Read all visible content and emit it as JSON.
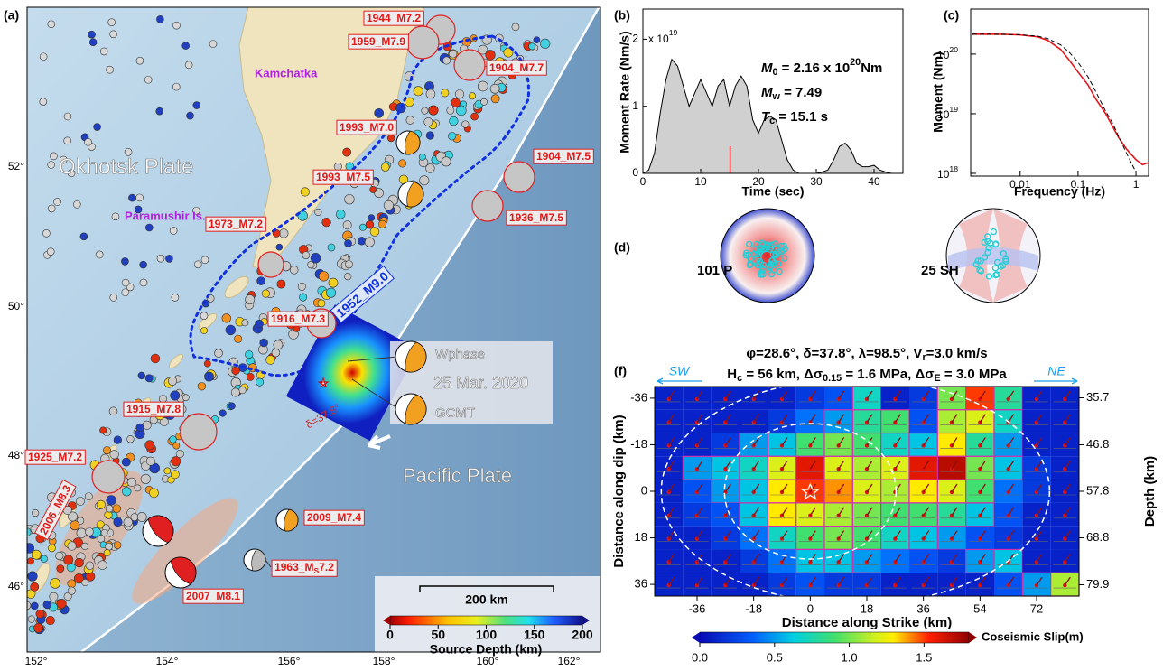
{
  "map": {
    "lon_ticks": [
      "152°",
      "154°",
      "156°",
      "158°",
      "160°",
      "162°"
    ],
    "lat_ticks": [
      "46°",
      "48°",
      "50°",
      "52°"
    ],
    "plate_labels": [
      "Okhotsk Plate",
      "Pacific Plate"
    ],
    "place_labels": [
      "Kamchatka",
      "Paramushir Is."
    ],
    "events": [
      "1944_M7.2",
      "1959_M7.9",
      "1904_M7.7",
      "1993_M7.0",
      "1993_M7.5",
      "1904_M7.5",
      "1936_M7.5",
      "1973_M7.2",
      "1916_M7.3",
      "1915_M7.8",
      "1925_M7.2",
      "2006_M8.3",
      "2009_M7.4",
      "2007_M8.1"
    ],
    "event_1963": [
      {
        "t": "1963_M"
      },
      {
        "sub": "S"
      },
      {
        "t": "7.2"
      }
    ],
    "rupture_1952": "1952_M9.0",
    "mainshock": {
      "methods": [
        "Wphase",
        "GCMT"
      ],
      "date": "25 Mar. 2020",
      "dip": "δ=37.8°"
    },
    "scale_bar": "200 km",
    "depth_colorbar": {
      "title": "Source Depth (km)",
      "lim": [
        0,
        200
      ],
      "ticks": [
        0,
        50,
        100,
        150,
        200
      ]
    }
  },
  "moment_rate": {
    "type": "area",
    "y_label": "Moment Rate (Nm/s)",
    "x_label": "Time (sec)",
    "y_scale": [
      {
        "t": "x 10"
      },
      {
        "sup": "19"
      }
    ],
    "annotations": [
      [
        {
          "i": "M"
        },
        {
          "sub": "0"
        },
        {
          "t": " = 2.16 x 10"
        },
        {
          "sup": "20"
        },
        {
          "t": "Nm"
        }
      ],
      [
        {
          "i": "M"
        },
        {
          "sub": "w"
        },
        {
          "t": " = 7.49"
        }
      ],
      [
        {
          "i": "T"
        },
        {
          "sub": "c"
        },
        {
          "t": " = 15.1 s"
        }
      ]
    ],
    "centroid_time": 15.1,
    "centroid_color": "#e02020",
    "color": "#d0d0d0",
    "xlim": [
      0,
      45
    ],
    "ylim": [
      0,
      2.45
    ],
    "xticks": [
      0,
      10,
      20,
      30,
      40
    ],
    "yticks": [
      0,
      1,
      2
    ],
    "x": [
      0,
      1,
      2,
      3,
      4,
      5,
      6,
      7,
      8,
      9,
      10,
      11,
      12,
      13,
      14,
      15,
      16,
      17,
      18,
      19,
      20,
      21,
      22,
      23,
      24,
      25,
      26,
      27,
      28,
      29,
      30,
      31,
      32,
      33,
      34,
      35,
      36,
      37,
      38,
      39,
      40,
      41,
      42,
      43,
      44,
      45
    ],
    "values": [
      0,
      0.05,
      0.3,
      0.9,
      1.4,
      1.7,
      1.6,
      1.3,
      1.0,
      1.2,
      1.4,
      1.2,
      1.0,
      1.3,
      1.4,
      1.0,
      1.3,
      1.45,
      1.3,
      0.8,
      0.6,
      0.8,
      0.85,
      0.8,
      0.5,
      0.2,
      0.05,
      0,
      0,
      0,
      0,
      0.02,
      0.05,
      0.2,
      0.4,
      0.45,
      0.35,
      0.15,
      0.1,
      0.1,
      0.12,
      0.05,
      0.02,
      0,
      0,
      0
    ]
  },
  "spectrum": {
    "type": "line",
    "log_x": true,
    "log_y": true,
    "x_label": "Frequency (Hz)",
    "y_label": "Moment (Nm)",
    "xlim": [
      0.0014,
      1.65
    ],
    "ylim": [
      9e+17,
      5.7e+20
    ],
    "xticks": [
      0.01,
      0.1,
      1
    ],
    "yticks": [
      {
        "value": 1e+18,
        "label": "10",
        "exponent": "18"
      },
      {
        "value": 1e+19,
        "label": "10",
        "exponent": "19"
      },
      {
        "value": 1e+20,
        "label": "10",
        "exponent": "20"
      }
    ],
    "series": [
      {
        "color": "#e8141c",
        "style": "solid",
        "x": [
          0.0015,
          0.005,
          0.01,
          0.02,
          0.03,
          0.05,
          0.07,
          0.1,
          0.15,
          0.2,
          0.3,
          0.4,
          0.5,
          0.7,
          1,
          1.3,
          1.6
        ],
        "values": [
          2.16e+20,
          2.15e+20,
          2.1e+20,
          1.95e+20,
          1.7e+20,
          1.2e+20,
          8e+19,
          5e+19,
          3e+19,
          1.8e+19,
          1e+19,
          6e+18,
          4e+18,
          2.5e+18,
          1.7e+18,
          1.4e+18,
          1.5e+18
        ]
      },
      {
        "color": "#000000",
        "style": "dashed",
        "x": [
          0.0015,
          0.005,
          0.01,
          0.02,
          0.03,
          0.05,
          0.07,
          0.1,
          0.15,
          0.2,
          0.3,
          0.4,
          0.5,
          0.7,
          1
        ],
        "values": [
          2.16e+20,
          2.15e+20,
          2.12e+20,
          2e+20,
          1.82e+20,
          1.43e+20,
          1.08e+20,
          7.3e+19,
          4.1e+19,
          2.4e+19,
          1.1e+19,
          6.8e+18,
          4.2e+18,
          2.1e+18,
          1.05e+18
        ]
      }
    ]
  },
  "mechanisms": {
    "labels": [
      "101 P",
      "25 SH"
    ]
  },
  "slip_model": {
    "type": "heatmap",
    "title": [
      [
        {
          "t": "φ=28.6°, δ=37.8°, λ=98.5°, V"
        },
        {
          "sub": "r"
        },
        {
          "t": "=3.0 km/s"
        }
      ],
      [
        {
          "t": "H"
        },
        {
          "sub": "c"
        },
        {
          "t": " = 56 km, Δσ"
        },
        {
          "sub": "0.15"
        },
        {
          "t": " = 1.6 MPa, Δσ"
        },
        {
          "sub": "E"
        },
        {
          "t": " = 3.0 MPa"
        }
      ]
    ],
    "directions": [
      "SW",
      "NE"
    ],
    "x_label": "Distance along Strike (km)",
    "y_label": "Distance along dip (km)",
    "y2_label": "Depth (km)",
    "xlim": [
      -49.5,
      85.5
    ],
    "ylim": [
      -40.5,
      40.5
    ],
    "y2lim": [
      33.03,
      82.57
    ],
    "xticks": [
      -36,
      -18,
      0,
      18,
      36,
      54,
      72
    ],
    "yticks": [
      -36,
      -18,
      0,
      18,
      36
    ],
    "y2ticks": [
      35.7,
      46.8,
      57.8,
      68.8,
      79.9
    ],
    "x": [
      -45,
      -36,
      -27,
      -18,
      -9,
      0,
      9,
      18,
      27,
      36,
      45,
      54,
      63,
      72,
      81
    ],
    "y": [
      -36,
      -27,
      -18,
      -9,
      0,
      9,
      18,
      27,
      36
    ],
    "values": [
      [
        0.1,
        0.1,
        0.1,
        0.1,
        0.1,
        0.2,
        0.3,
        0.7,
        0.1,
        0.2,
        1.0,
        1.5,
        0.8,
        0.1,
        0.1
      ],
      [
        0.1,
        0.1,
        0.1,
        0.1,
        0.2,
        0.4,
        0.5,
        0.8,
        0.9,
        0.3,
        1.1,
        1.2,
        0.7,
        0.1,
        0.1
      ],
      [
        0.1,
        0.1,
        0.2,
        0.5,
        0.6,
        0.9,
        1.0,
        0.9,
        0.7,
        0.6,
        1.3,
        0.8,
        0.5,
        0.1,
        0.1
      ],
      [
        0.1,
        0.5,
        0.6,
        0.7,
        1.2,
        1.6,
        1.2,
        1.1,
        1.2,
        1.6,
        1.7,
        1.0,
        0.6,
        0.2,
        0.1
      ],
      [
        0.1,
        0.3,
        0.5,
        0.6,
        1.3,
        1.5,
        1.4,
        1.2,
        1.1,
        1.3,
        1.2,
        0.9,
        0.4,
        0.2,
        0.1
      ],
      [
        0.1,
        0.2,
        0.3,
        0.6,
        1.3,
        1.2,
        1.1,
        1.0,
        0.9,
        0.9,
        0.8,
        0.6,
        0.3,
        0.1,
        0.1
      ],
      [
        0.1,
        0.1,
        0.2,
        0.4,
        0.7,
        0.9,
        1.0,
        0.9,
        0.7,
        0.6,
        0.5,
        0.3,
        0.2,
        0.1,
        0.1
      ],
      [
        0.1,
        0.1,
        0.1,
        0.2,
        0.4,
        0.6,
        0.6,
        0.5,
        0.4,
        0.3,
        0.2,
        0.5,
        0.6,
        0.1,
        0.1
      ],
      [
        0.1,
        0.1,
        0.1,
        0.1,
        0.2,
        0.3,
        0.2,
        0.2,
        0.1,
        0.1,
        0.1,
        0.1,
        0.3,
        0.5,
        1.1
      ]
    ],
    "colorbar": {
      "title": "Coseismic Slip(m)",
      "lim": [
        0,
        1.8
      ],
      "ticks": [
        {
          "value": 0,
          "label": "0.0"
        },
        0.5,
        {
          "value": 1,
          "label": "1.0"
        },
        1.5
      ]
    }
  },
  "panel_labels": [
    "(a)",
    "(b)",
    "(c)",
    "(d)",
    "(f)"
  ]
}
